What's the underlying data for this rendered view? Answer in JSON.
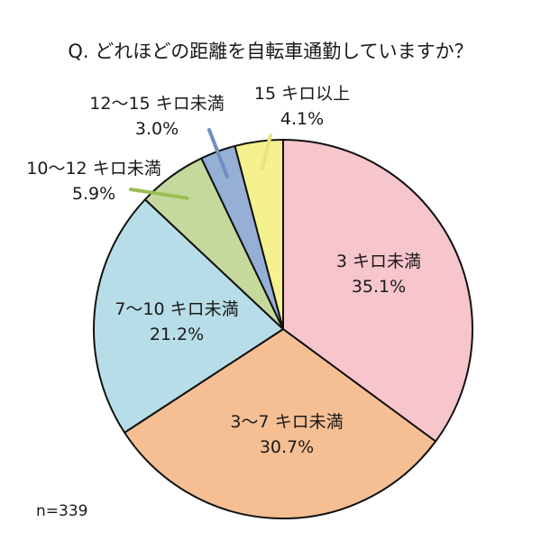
{
  "chart_data": {
    "type": "pie",
    "title": "Q. どれほどの距離を自転車通勤していますか？",
    "note": "n=339",
    "slices": [
      {
        "label": "3 キロ未満",
        "value": 35.1,
        "value_label": "35.1%",
        "color": "#f7c5cc"
      },
      {
        "label": "3〜7 キロ未満",
        "value": 30.7,
        "value_label": "30.7%",
        "color": "#f5bf93"
      },
      {
        "label": "7〜10 キロ未満",
        "value": 21.2,
        "value_label": "21.2%",
        "color": "#b7dde8"
      },
      {
        "label": "10〜12 キロ未満",
        "value": 5.9,
        "value_label": "5.9%",
        "color": "#c6d99d"
      },
      {
        "label": "12〜15 キロ未満",
        "value": 3.0,
        "value_label": "3.0%",
        "color": "#95afd5"
      },
      {
        "label": "15 キロ以上",
        "value": 4.1,
        "value_label": "4.1%",
        "color": "#f4f18e"
      }
    ]
  }
}
